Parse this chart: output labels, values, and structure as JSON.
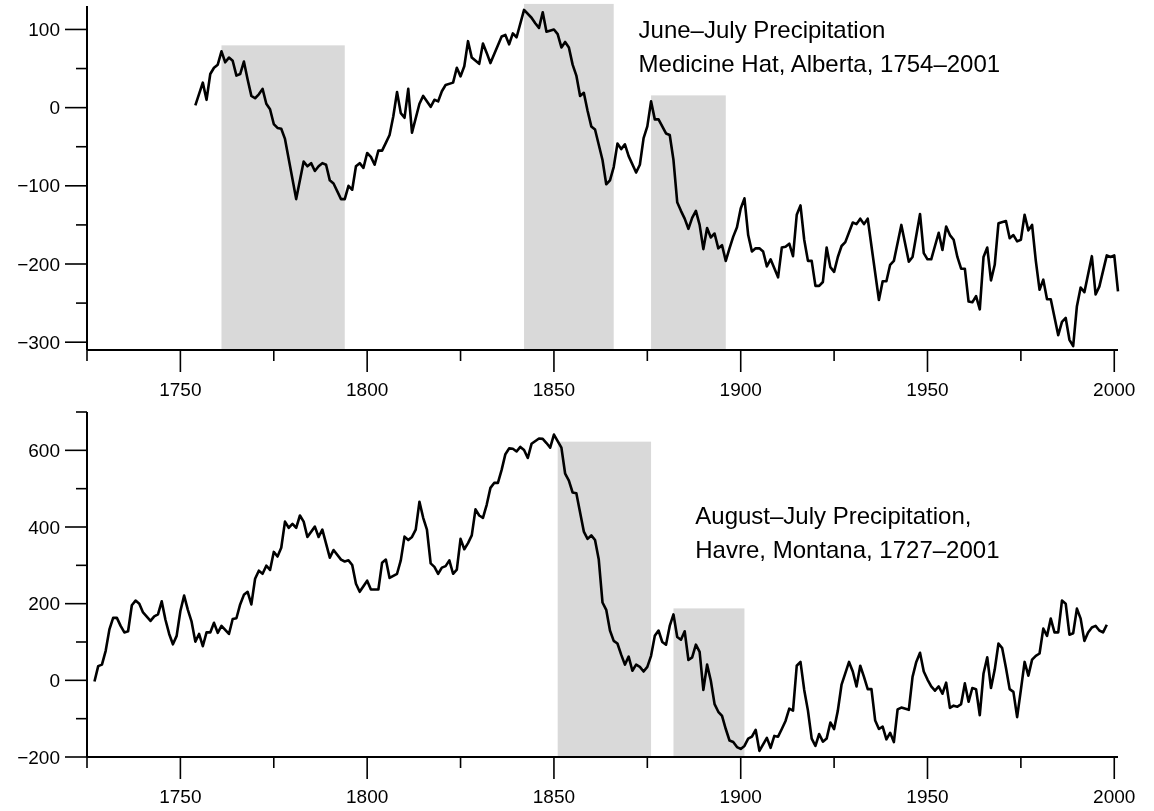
{
  "chart_data": [
    {
      "type": "line",
      "title": "June–July Precipitation\nMedicine Hat, Alberta, 1754–2001",
      "xlim": [
        1725,
        2001
      ],
      "xticks": [
        {
          "value": 1725,
          "label": null
        },
        1750,
        {
          "value": 1775,
          "label": null
        },
        1800,
        {
          "value": 1825,
          "label": null
        },
        1850,
        {
          "value": 1875,
          "label": null
        },
        1900,
        {
          "value": 1925,
          "label": null
        },
        1950,
        {
          "value": 1975,
          "label": null
        },
        2000
      ],
      "ylim": [
        -310,
        130
      ],
      "yticks": [
        -300,
        {
          "value": -250,
          "label": null
        },
        -200,
        {
          "value": -150,
          "label": null
        },
        -100,
        {
          "value": -50,
          "label": null
        },
        0,
        {
          "value": 50,
          "label": null
        },
        100
      ],
      "bands": [
        {
          "axis": "x",
          "from": 1761,
          "to": 1794,
          "color": "#d9d9d9"
        },
        {
          "axis": "x",
          "from": 1842,
          "to": 1866,
          "color": "#d9d9d9"
        },
        {
          "axis": "x",
          "from": 1876,
          "to": 1896,
          "color": "#d9d9d9"
        }
      ],
      "series": [
        {
          "color": "#000000",
          "x": [
            1754,
            1756,
            1757,
            1758,
            1759,
            1760,
            1761,
            1762,
            1763,
            1764,
            1765,
            1766,
            1767,
            1768,
            1769,
            1770,
            1771,
            1772,
            1773,
            1774,
            1775,
            1776,
            1777,
            1778,
            1781,
            1783,
            1784,
            1785,
            1786,
            1787,
            1788,
            1789,
            1790,
            1791,
            1793,
            1794,
            1795,
            1796,
            1797,
            1798,
            1799,
            1800,
            1801,
            1802,
            1803,
            1804,
            1805,
            1806,
            1807,
            1808,
            1809,
            1810,
            1811,
            1812,
            1814,
            1815,
            1817,
            1818,
            1819,
            1820,
            1821,
            1823,
            1824,
            1825,
            1826,
            1827,
            1828,
            1830,
            1831,
            1832,
            1833,
            1836,
            1837,
            1838,
            1839,
            1840,
            1842,
            1844,
            1845,
            1846,
            1847,
            1848,
            1850,
            1851,
            1852,
            1853,
            1854,
            1855,
            1856,
            1857,
            1858,
            1859,
            1860,
            1861,
            1863,
            1864,
            1865,
            1866,
            1867,
            1868,
            1869,
            1870,
            1872,
            1873,
            1874,
            1875,
            1876,
            1877,
            1878,
            1880,
            1881,
            1882,
            1883,
            1884,
            1885,
            1886,
            1887,
            1888,
            1889,
            1890,
            1891,
            1892,
            1893,
            1894,
            1895,
            1896,
            1897,
            1898,
            1899,
            1900,
            1901,
            1902,
            1903,
            1904,
            1905,
            1906,
            1907,
            1908,
            1910,
            1911,
            1912,
            1913,
            1914,
            1915,
            1916,
            1917,
            1918,
            1919,
            1920,
            1921,
            1922,
            1923,
            1924,
            1925,
            1926,
            1927,
            1928,
            1930,
            1931,
            1932,
            1933,
            1934,
            1935,
            1937,
            1938,
            1939,
            1940,
            1941,
            1943,
            1945,
            1946,
            1948,
            1949,
            1950,
            1951,
            1953,
            1954,
            1955,
            1956,
            1957,
            1958,
            1959,
            1960,
            1961,
            1962,
            1963,
            1964,
            1965,
            1966,
            1967,
            1968,
            1969,
            1971,
            1972,
            1973,
            1974,
            1975,
            1976,
            1977,
            1978,
            1979,
            1980,
            1981,
            1982,
            1983,
            1985,
            1986,
            1987,
            1988,
            1989,
            1990,
            1991,
            1992,
            1994,
            1995,
            1996,
            1998,
            1999,
            2000,
            2001
          ],
          "values": [
            3,
            32,
            10,
            43,
            51,
            55,
            72,
            58,
            64,
            60,
            41,
            43,
            59,
            36,
            15,
            12,
            17,
            24,
            5,
            -2,
            -21,
            -26,
            -27,
            -40,
            -117,
            -69,
            -75,
            -71,
            -81,
            -75,
            -71,
            -73,
            -93,
            -97,
            -117,
            -117,
            -100,
            -105,
            -75,
            -71,
            -77,
            -58,
            -63,
            -73,
            -55,
            -55,
            -45,
            -35,
            -11,
            20,
            -7,
            -13,
            24,
            -32,
            5,
            15,
            1,
            10,
            8,
            21,
            29,
            32,
            51,
            40,
            53,
            85,
            64,
            56,
            82,
            70,
            57,
            91,
            93,
            81,
            95,
            90,
            125,
            115,
            108,
            102,
            122,
            97,
            100,
            94,
            77,
            84,
            77,
            55,
            41,
            15,
            19,
            -4,
            -24,
            -28,
            -67,
            -98,
            -93,
            -76,
            -46,
            -53,
            -47,
            -62,
            -83,
            -73,
            -39,
            -24,
            8,
            -15,
            -15,
            -33,
            -35,
            -67,
            -121,
            -132,
            -142,
            -155,
            -141,
            -132,
            -150,
            -181,
            -154,
            -166,
            -161,
            -180,
            -176,
            -196,
            -180,
            -165,
            -153,
            -129,
            -116,
            -163,
            -184,
            -180,
            -180,
            -184,
            -203,
            -194,
            -217,
            -179,
            -178,
            -174,
            -190,
            -137,
            -125,
            -169,
            -196,
            -196,
            -228,
            -228,
            -223,
            -179,
            -204,
            -210,
            -191,
            -177,
            -172,
            -147,
            -149,
            -142,
            -149,
            -142,
            -177,
            -246,
            -222,
            -222,
            -201,
            -196,
            -150,
            -197,
            -191,
            -136,
            -186,
            -194,
            -194,
            -160,
            -182,
            -152,
            -163,
            -169,
            -191,
            -206,
            -206,
            -248,
            -249,
            -241,
            -258,
            -191,
            -179,
            -221,
            -201,
            -148,
            -145,
            -167,
            -163,
            -171,
            -169,
            -137,
            -157,
            -150,
            -196,
            -233,
            -220,
            -245,
            -245,
            -291,
            -274,
            -269,
            -297,
            -305,
            -254,
            -230,
            -236,
            -190,
            -239,
            -229,
            -189,
            -191,
            -189,
            -235
          ]
        }
      ]
    },
    {
      "type": "line",
      "title": "August–July Precipitation,\nHavre, Montana, 1727–2001",
      "xlim": [
        1725,
        2001
      ],
      "xticks": [
        {
          "value": 1725,
          "label": null
        },
        1750,
        {
          "value": 1775,
          "label": null
        },
        1800,
        {
          "value": 1825,
          "label": null
        },
        1850,
        {
          "value": 1875,
          "label": null
        },
        1900,
        {
          "value": 1925,
          "label": null
        },
        1950,
        {
          "value": 1975,
          "label": null
        },
        2000
      ],
      "ylim": [
        -200,
        700
      ],
      "yticks": [
        -200,
        {
          "value": -100,
          "label": null
        },
        0,
        {
          "value": 100,
          "label": null
        },
        200,
        {
          "value": 300,
          "label": null
        },
        400,
        {
          "value": 500,
          "label": null
        },
        600,
        {
          "value": 700,
          "label": null
        }
      ],
      "bands": [
        {
          "axis": "x",
          "from": 1851,
          "to": 1876,
          "color": "#d9d9d9"
        },
        {
          "axis": "x",
          "from": 1882,
          "to": 1901,
          "color": "#d9d9d9"
        }
      ],
      "series": [
        {
          "color": "#000000",
          "x": [
            1727,
            1728,
            1729,
            1730,
            1731,
            1732,
            1733,
            1734,
            1735,
            1736,
            1737,
            1738,
            1739,
            1740,
            1742,
            1743,
            1744,
            1745,
            1746,
            1747,
            1748,
            1749,
            1750,
            1751,
            1752,
            1753,
            1754,
            1755,
            1756,
            1757,
            1758,
            1759,
            1760,
            1761,
            1763,
            1764,
            1765,
            1766,
            1767,
            1768,
            1769,
            1770,
            1771,
            1772,
            1773,
            1774,
            1775,
            1776,
            1777,
            1778,
            1779,
            1780,
            1781,
            1782,
            1783,
            1784,
            1786,
            1787,
            1788,
            1790,
            1791,
            1793,
            1794,
            1795,
            1796,
            1797,
            1798,
            1800,
            1801,
            1803,
            1804,
            1805,
            1806,
            1808,
            1809,
            1810,
            1811,
            1812,
            1813,
            1814,
            1815,
            1816,
            1817,
            1818,
            1819,
            1820,
            1821,
            1822,
            1823,
            1824,
            1825,
            1826,
            1827,
            1828,
            1829,
            1830,
            1831,
            1832,
            1833,
            1834,
            1835,
            1836,
            1837,
            1838,
            1839,
            1840,
            1841,
            1842,
            1843,
            1844,
            1846,
            1847,
            1848,
            1849,
            1850,
            1852,
            1853,
            1854,
            1855,
            1856,
            1858,
            1859,
            1860,
            1861,
            1862,
            1863,
            1864,
            1865,
            1866,
            1867,
            1868,
            1869,
            1870,
            1871,
            1872,
            1873,
            1874,
            1875,
            1876,
            1877,
            1878,
            1879,
            1880,
            1881,
            1882,
            1883,
            1884,
            1885,
            1886,
            1887,
            1888,
            1889,
            1890,
            1891,
            1892,
            1893,
            1894,
            1895,
            1896,
            1897,
            1898,
            1899,
            1900,
            1901,
            1902,
            1903,
            1904,
            1905,
            1907,
            1908,
            1909,
            1910,
            1911,
            1912,
            1913,
            1914,
            1915,
            1916,
            1917,
            1918,
            1919,
            1920,
            1921,
            1922,
            1923,
            1924,
            1925,
            1926,
            1927,
            1929,
            1930,
            1931,
            1932,
            1933,
            1934,
            1935,
            1936,
            1937,
            1938,
            1939,
            1940,
            1941,
            1942,
            1943,
            1945,
            1946,
            1947,
            1948,
            1949,
            1950,
            1951,
            1952,
            1953,
            1954,
            1955,
            1956,
            1957,
            1958,
            1959,
            1960,
            1961,
            1962,
            1963,
            1964,
            1965,
            1966,
            1967,
            1968,
            1969,
            1970,
            1971,
            1972,
            1973,
            1974,
            1975,
            1976,
            1977,
            1978,
            1979,
            1980,
            1981,
            1982,
            1983,
            1984,
            1985,
            1986,
            1987,
            1988,
            1989,
            1990,
            1991,
            1992,
            1993,
            1994,
            1995,
            1996,
            1997,
            1998
          ],
          "values": [
            -3,
            37,
            41,
            77,
            133,
            163,
            163,
            142,
            125,
            128,
            196,
            208,
            200,
            177,
            155,
            167,
            172,
            206,
            158,
            121,
            94,
            116,
            181,
            221,
            184,
            153,
            101,
            121,
            89,
            125,
            125,
            150,
            124,
            142,
            121,
            160,
            162,
            198,
            223,
            231,
            198,
            265,
            286,
            278,
            299,
            288,
            335,
            323,
            346,
            414,
            398,
            408,
            398,
            430,
            414,
            374,
            401,
            374,
            393,
            320,
            340,
            315,
            310,
            313,
            301,
            252,
            231,
            260,
            237,
            237,
            307,
            315,
            267,
            278,
            313,
            375,
            366,
            374,
            393,
            466,
            424,
            393,
            305,
            296,
            278,
            294,
            298,
            313,
            278,
            289,
            369,
            342,
            358,
            378,
            446,
            430,
            424,
            458,
            502,
            515,
            515,
            549,
            590,
            605,
            604,
            597,
            609,
            601,
            580,
            617,
            631,
            630,
            619,
            607,
            641,
            607,
            539,
            521,
            490,
            488,
            388,
            369,
            378,
            366,
            315,
            203,
            184,
            130,
            103,
            96,
            67,
            41,
            62,
            25,
            41,
            35,
            23,
            35,
            64,
            116,
            130,
            100,
            93,
            142,
            172,
            113,
            106,
            128,
            53,
            60,
            93,
            74,
            -25,
            41,
            -1,
            -62,
            -82,
            -93,
            -127,
            -157,
            -161,
            -174,
            -179,
            -171,
            -152,
            -147,
            -129,
            -184,
            -150,
            -176,
            -145,
            -147,
            -127,
            -106,
            -74,
            -79,
            38,
            48,
            -25,
            -79,
            -152,
            -171,
            -140,
            -160,
            -152,
            -110,
            -127,
            -79,
            -11,
            48,
            23,
            -16,
            38,
            9,
            -23,
            -23,
            -105,
            -127,
            -121,
            -154,
            -137,
            -161,
            -76,
            -71,
            -77,
            9,
            48,
            72,
            23,
            2,
            -16,
            -27,
            -16,
            -35,
            -6,
            -72,
            -66,
            -69,
            -62,
            -8,
            -56,
            -20,
            -23,
            -91,
            18,
            60,
            -20,
            28,
            96,
            84,
            33,
            -23,
            -30,
            -96,
            -25,
            48,
            12,
            54,
            64,
            70,
            135,
            116,
            161,
            125,
            125,
            208,
            200,
            119,
            123,
            187,
            161,
            103,
            125,
            138,
            142,
            130,
            125,
            145
          ]
        }
      ]
    }
  ]
}
